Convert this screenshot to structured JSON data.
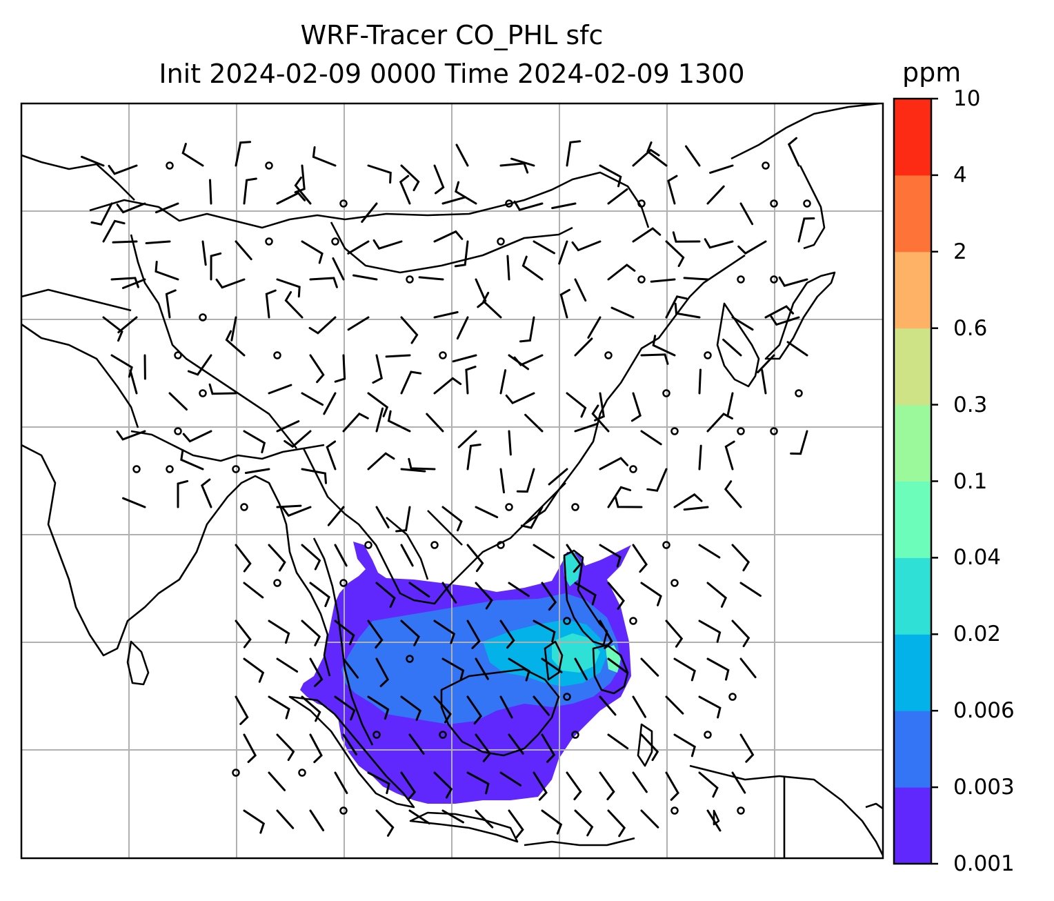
{
  "title": {
    "line1": "WRF-Tracer CO_PHL sfc",
    "line2": "Init 2024-02-09 0000 Time 2024-02-09 1300"
  },
  "colorbar": {
    "unit": "ppm",
    "levels": [
      "0.001",
      "0.003",
      "0.006",
      "0.02",
      "0.04",
      "0.1",
      "0.3",
      "0.6",
      "2",
      "4",
      "10"
    ],
    "colors": [
      "#6028fc",
      "#3375f5",
      "#04b2ea",
      "#2ee0d6",
      "#6cfdbb",
      "#9bf99c",
      "#cee386",
      "#feb266",
      "#fe7438",
      "#fe2b14"
    ]
  },
  "map": {
    "background": "#ffffff",
    "coastline_color": "#000000",
    "grid_color": "#b0b0b0",
    "barb_color": "#000000"
  }
}
